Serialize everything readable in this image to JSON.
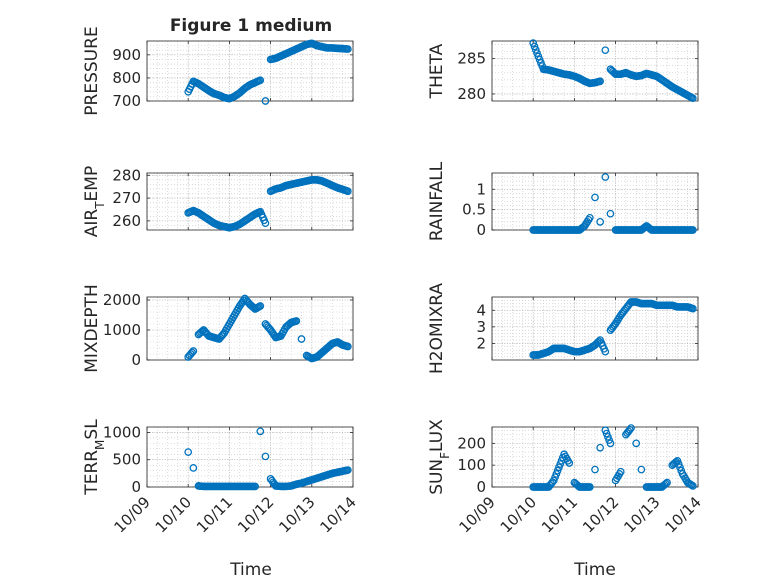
{
  "figure": {
    "title": "Figure 1 medium",
    "time_label": "Time",
    "date_ticks": [
      "10/09",
      "10/10",
      "10/11",
      "10/12",
      "10/13",
      "10/14"
    ]
  },
  "colors": {
    "marker": "#0072bd",
    "axis": "#262626",
    "grid": "#c8c8c8",
    "background": "#ffffff"
  },
  "chart_data": [
    {
      "type": "scatter",
      "ylabel": "PRESSURE",
      "xlim": [
        "10/09",
        "10/14"
      ],
      "ylim": [
        700,
        960
      ],
      "yticks": [
        700,
        800,
        900
      ],
      "grid": true,
      "x": [
        "10/10 00:00",
        "10/10 03:00",
        "10/10 06:00",
        "10/10 09:00",
        "10/10 12:00",
        "10/10 15:00",
        "10/10 18:00",
        "10/10 21:00",
        "10/11 00:00",
        "10/11 03:00",
        "10/11 06:00",
        "10/11 09:00",
        "10/11 12:00",
        "10/11 15:00",
        "10/11 18:00",
        "10/11 21:00",
        "10/12 00:00",
        "10/12 03:00",
        "10/12 06:00",
        "10/12 09:00",
        "10/12 12:00",
        "10/12 15:00",
        "10/12 18:00",
        "10/12 21:00",
        "10/13 00:00",
        "10/13 03:00",
        "10/13 06:00",
        "10/13 09:00",
        "10/13 12:00",
        "10/13 15:00",
        "10/13 18:00",
        "10/13 21:00"
      ],
      "y": [
        740,
        785,
        775,
        760,
        745,
        732,
        725,
        715,
        710,
        720,
        735,
        755,
        770,
        780,
        790,
        700,
        880,
        885,
        895,
        905,
        915,
        925,
        935,
        945,
        950,
        940,
        935,
        930,
        930,
        928,
        927,
        925
      ]
    },
    {
      "type": "scatter",
      "ylabel": "THETA",
      "xlim": [
        "10/09",
        "10/14"
      ],
      "ylim": [
        279,
        287.5
      ],
      "yticks": [
        280,
        285
      ],
      "grid": true,
      "x": [
        "10/10 00:00",
        "10/10 03:00",
        "10/10 06:00",
        "10/10 09:00",
        "10/10 12:00",
        "10/10 15:00",
        "10/10 18:00",
        "10/10 21:00",
        "10/11 00:00",
        "10/11 03:00",
        "10/11 06:00",
        "10/11 09:00",
        "10/11 12:00",
        "10/11 15:00",
        "10/11 18:00",
        "10/11 21:00",
        "10/12 00:00",
        "10/12 03:00",
        "10/12 06:00",
        "10/12 09:00",
        "10/12 12:00",
        "10/12 15:00",
        "10/12 18:00",
        "10/12 21:00",
        "10/13 00:00",
        "10/13 03:00",
        "10/13 06:00",
        "10/13 09:00",
        "10/13 12:00",
        "10/13 15:00",
        "10/13 18:00",
        "10/13 21:00"
      ],
      "y": [
        287.2,
        285.3,
        283.5,
        283.4,
        283.2,
        283.0,
        282.8,
        282.7,
        282.5,
        282.2,
        281.8,
        281.5,
        281.6,
        281.8,
        286.2,
        283.5,
        282.8,
        282.8,
        283.0,
        282.7,
        282.5,
        282.6,
        282.9,
        282.7,
        282.5,
        282.0,
        281.5,
        281.0,
        280.6,
        280.2,
        279.8,
        279.4
      ]
    },
    {
      "type": "scatter",
      "ylabel": "AIR_TEMP",
      "xlim": [
        "10/09",
        "10/14"
      ],
      "ylim": [
        256,
        281
      ],
      "yticks": [
        260,
        270,
        280
      ],
      "grid": true,
      "x": [
        "10/10 00:00",
        "10/10 03:00",
        "10/10 06:00",
        "10/10 09:00",
        "10/10 12:00",
        "10/10 15:00",
        "10/10 18:00",
        "10/10 21:00",
        "10/11 00:00",
        "10/11 03:00",
        "10/11 06:00",
        "10/11 09:00",
        "10/11 12:00",
        "10/11 15:00",
        "10/11 18:00",
        "10/11 21:00",
        "10/12 00:00",
        "10/12 03:00",
        "10/12 06:00",
        "10/12 09:00",
        "10/12 12:00",
        "10/12 15:00",
        "10/12 18:00",
        "10/12 21:00",
        "10/13 00:00",
        "10/13 03:00",
        "10/13 06:00",
        "10/13 09:00",
        "10/13 12:00",
        "10/13 15:00",
        "10/13 18:00",
        "10/13 21:00"
      ],
      "y": [
        263.5,
        264.5,
        263.5,
        262,
        260.5,
        259,
        258,
        257.5,
        257,
        257.5,
        258.5,
        260,
        261.5,
        263,
        264,
        259,
        273,
        274,
        274.5,
        275.5,
        276,
        276.5,
        277,
        277.5,
        278,
        278,
        277.5,
        276.5,
        275.5,
        274.5,
        273.8,
        273
      ]
    },
    {
      "type": "scatter",
      "ylabel": "RAINFALL",
      "xlim": [
        "10/09",
        "10/14"
      ],
      "ylim": [
        0,
        1.4
      ],
      "yticks": [
        0,
        0.5,
        1
      ],
      "ytick_labels": [
        "0",
        "0.5",
        "1"
      ],
      "grid": true,
      "x": [
        "10/10 00:00",
        "10/10 03:00",
        "10/10 06:00",
        "10/10 09:00",
        "10/10 12:00",
        "10/10 15:00",
        "10/10 18:00",
        "10/10 21:00",
        "10/11 00:00",
        "10/11 03:00",
        "10/11 06:00",
        "10/11 09:00",
        "10/11 12:00",
        "10/11 15:00",
        "10/11 18:00",
        "10/11 21:00",
        "10/12 00:00",
        "10/12 03:00",
        "10/12 06:00",
        "10/12 09:00",
        "10/12 12:00",
        "10/12 15:00",
        "10/12 18:00",
        "10/12 21:00",
        "10/13 00:00",
        "10/13 03:00",
        "10/13 06:00",
        "10/13 09:00",
        "10/13 12:00",
        "10/13 15:00",
        "10/13 18:00",
        "10/13 21:00"
      ],
      "y": [
        0,
        0,
        0,
        0,
        0,
        0,
        0,
        0,
        0,
        0,
        0.1,
        0.3,
        0.8,
        0.2,
        1.3,
        0.4,
        0,
        0,
        0,
        0,
        0,
        0,
        0.1,
        0,
        0,
        0,
        0,
        0,
        0,
        0,
        0,
        0
      ]
    },
    {
      "type": "scatter",
      "ylabel": "MIXDEPTH",
      "xlim": [
        "10/09",
        "10/14"
      ],
      "ylim": [
        0,
        2100
      ],
      "yticks": [
        0,
        1000,
        2000
      ],
      "grid": true,
      "x": [
        "10/10 00:00",
        "10/10 03:00",
        "10/10 06:00",
        "10/10 09:00",
        "10/10 12:00",
        "10/10 15:00",
        "10/10 18:00",
        "10/10 21:00",
        "10/11 00:00",
        "10/11 03:00",
        "10/11 06:00",
        "10/11 09:00",
        "10/11 12:00",
        "10/11 15:00",
        "10/11 18:00",
        "10/11 21:00",
        "10/12 00:00",
        "10/12 03:00",
        "10/12 06:00",
        "10/12 09:00",
        "10/12 12:00",
        "10/12 15:00",
        "10/12 18:00",
        "10/12 21:00",
        "10/13 00:00",
        "10/13 03:00",
        "10/13 06:00",
        "10/13 09:00",
        "10/13 12:00",
        "10/13 15:00",
        "10/13 18:00",
        "10/13 21:00"
      ],
      "y": [
        100,
        300,
        850,
        1000,
        800,
        750,
        700,
        900,
        1200,
        1500,
        1800,
        2050,
        1850,
        1700,
        1800,
        1200,
        1000,
        750,
        800,
        1100,
        1250,
        1300,
        700,
        150,
        50,
        100,
        250,
        400,
        550,
        600,
        500,
        450
      ]
    },
    {
      "type": "scatter",
      "ylabel": "H2OMIXRA",
      "xlim": [
        "10/09",
        "10/14"
      ],
      "ylim": [
        1,
        4.8
      ],
      "yticks": [
        2,
        3,
        4
      ],
      "grid": true,
      "x": [
        "10/10 00:00",
        "10/10 03:00",
        "10/10 06:00",
        "10/10 09:00",
        "10/10 12:00",
        "10/10 15:00",
        "10/10 18:00",
        "10/10 21:00",
        "10/11 00:00",
        "10/11 03:00",
        "10/11 06:00",
        "10/11 09:00",
        "10/11 12:00",
        "10/11 15:00",
        "10/11 18:00",
        "10/11 21:00",
        "10/12 00:00",
        "10/12 03:00",
        "10/12 06:00",
        "10/12 09:00",
        "10/12 12:00",
        "10/12 15:00",
        "10/12 18:00",
        "10/12 21:00",
        "10/13 00:00",
        "10/13 03:00",
        "10/13 06:00",
        "10/13 09:00",
        "10/13 12:00",
        "10/13 15:00",
        "10/13 18:00",
        "10/13 21:00"
      ],
      "y": [
        1.3,
        1.3,
        1.4,
        1.5,
        1.7,
        1.7,
        1.7,
        1.6,
        1.5,
        1.5,
        1.6,
        1.7,
        1.9,
        2.2,
        1.5,
        2.8,
        3.2,
        3.7,
        4.1,
        4.5,
        4.5,
        4.4,
        4.4,
        4.4,
        4.3,
        4.3,
        4.3,
        4.3,
        4.2,
        4.2,
        4.2,
        4.1
      ]
    },
    {
      "type": "scatter",
      "ylabel": "TERR_MSL",
      "xlim": [
        "10/09",
        "10/14"
      ],
      "ylim": [
        0,
        1100
      ],
      "yticks": [
        0,
        500,
        1000
      ],
      "grid": true,
      "x": [
        "10/10 00:00",
        "10/10 03:00",
        "10/10 06:00",
        "10/10 09:00",
        "10/10 12:00",
        "10/10 15:00",
        "10/10 18:00",
        "10/10 21:00",
        "10/11 00:00",
        "10/11 03:00",
        "10/11 06:00",
        "10/11 09:00",
        "10/11 12:00",
        "10/11 15:00",
        "10/11 18:00",
        "10/11 21:00",
        "10/12 00:00",
        "10/12 03:00",
        "10/12 06:00",
        "10/12 09:00",
        "10/12 12:00",
        "10/12 15:00",
        "10/12 18:00",
        "10/12 21:00",
        "10/13 00:00",
        "10/13 03:00",
        "10/13 06:00",
        "10/13 09:00",
        "10/13 12:00",
        "10/13 15:00",
        "10/13 18:00",
        "10/13 21:00"
      ],
      "y": [
        640,
        350,
        20,
        10,
        10,
        10,
        10,
        10,
        10,
        10,
        10,
        10,
        10,
        10,
        1020,
        560,
        150,
        20,
        10,
        10,
        20,
        50,
        70,
        100,
        130,
        160,
        190,
        220,
        250,
        270,
        290,
        310
      ]
    },
    {
      "type": "scatter",
      "ylabel": "SUN_FLUX",
      "xlim": [
        "10/09",
        "10/14"
      ],
      "ylim": [
        0,
        275
      ],
      "yticks": [
        0,
        100,
        200
      ],
      "grid": true,
      "x": [
        "10/10 00:00",
        "10/10 03:00",
        "10/10 06:00",
        "10/10 09:00",
        "10/10 12:00",
        "10/10 15:00",
        "10/10 18:00",
        "10/10 21:00",
        "10/11 00:00",
        "10/11 03:00",
        "10/11 06:00",
        "10/11 09:00",
        "10/11 12:00",
        "10/11 15:00",
        "10/11 18:00",
        "10/11 21:00",
        "10/12 00:00",
        "10/12 03:00",
        "10/12 06:00",
        "10/12 09:00",
        "10/12 12:00",
        "10/12 15:00",
        "10/12 18:00",
        "10/12 21:00",
        "10/13 00:00",
        "10/13 03:00",
        "10/13 06:00",
        "10/13 09:00",
        "10/13 12:00",
        "10/13 15:00",
        "10/13 18:00",
        "10/13 21:00"
      ],
      "y": [
        0,
        0,
        0,
        0,
        30,
        90,
        150,
        110,
        20,
        0,
        0,
        0,
        80,
        180,
        260,
        200,
        30,
        70,
        240,
        270,
        200,
        80,
        0,
        0,
        0,
        0,
        20,
        100,
        120,
        60,
        20,
        5
      ]
    }
  ]
}
